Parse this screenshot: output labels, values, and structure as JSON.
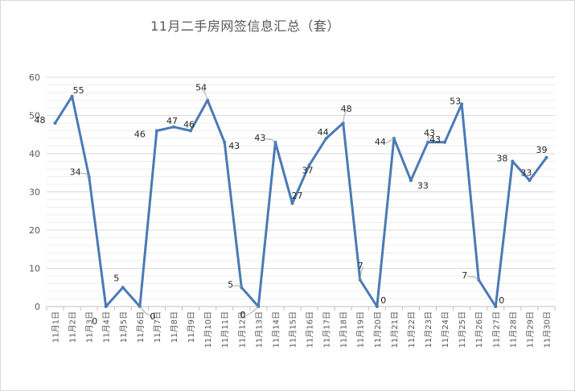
{
  "chart_data": {
    "type": "line",
    "title": "11月二手房网签信息汇总（套）",
    "categories": [
      "11月1日",
      "11月2日",
      "11月3日",
      "11月4日",
      "11月5日",
      "11月6日",
      "11月7日",
      "11月8日",
      "11月9日",
      "11月10日",
      "11月11日",
      "11月12日",
      "11月13日",
      "11月14日",
      "11月15日",
      "11月16日",
      "11月17日",
      "11月18日",
      "11月19日",
      "11月20日",
      "11月21日",
      "11月22日",
      "11月23日",
      "11月24日",
      "11月25日",
      "11月26日",
      "11月27日",
      "11月28日",
      "11月29日",
      "11月30日"
    ],
    "series": [
      {
        "values": [
          48,
          55,
          34,
          0,
          5,
          0,
          46,
          47,
          46,
          54,
          43,
          5,
          0,
          43,
          27,
          37,
          44,
          48,
          7,
          0,
          44,
          33,
          43,
          43,
          53,
          7,
          0,
          38,
          33,
          39
        ],
        "color": "#4a7ab5"
      }
    ],
    "ylim": [
      0,
      60
    ],
    "yticks": [
      0,
      10,
      20,
      30,
      40,
      50,
      60
    ],
    "grid": true,
    "legend": "none"
  }
}
